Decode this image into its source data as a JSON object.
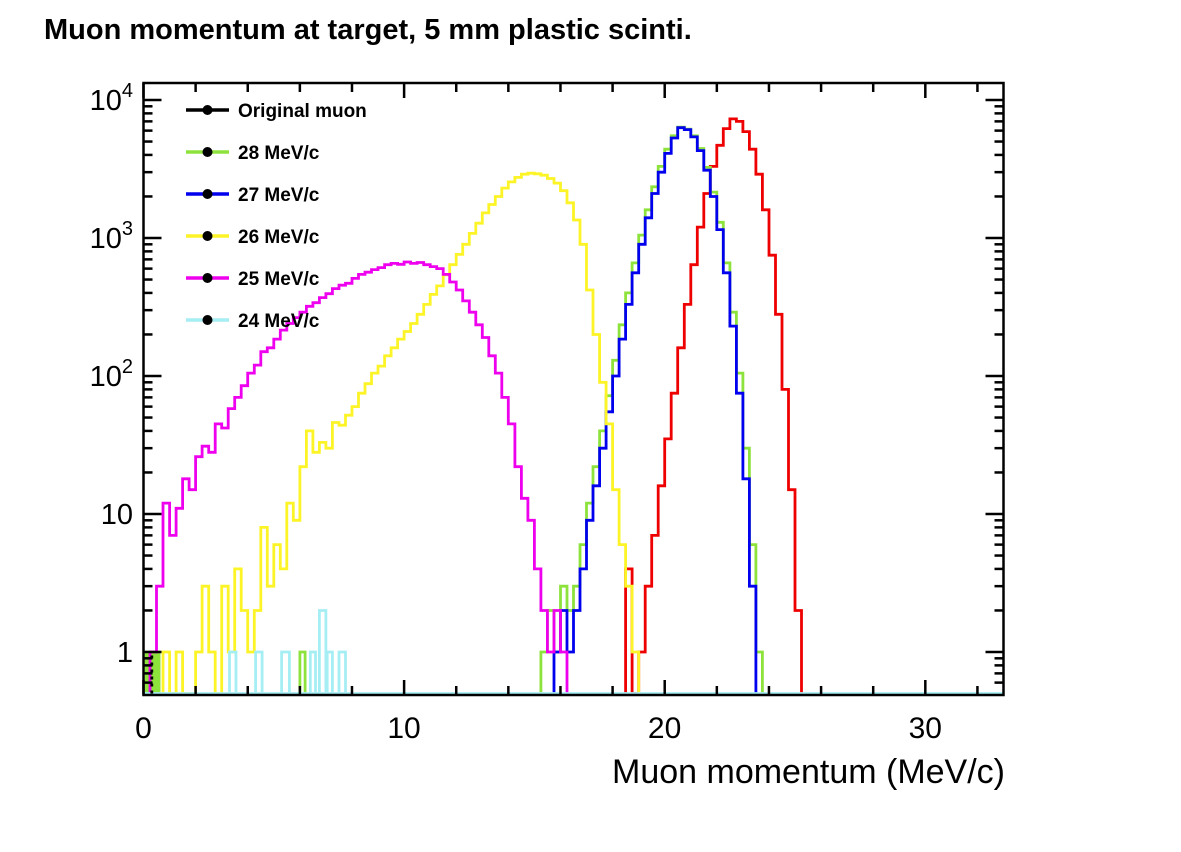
{
  "title": "Muon momentum at target, 5 mm plastic scinti.",
  "axes": {
    "x": {
      "title": "Muon momentum (MeV/c)",
      "range": [
        0,
        33
      ],
      "major_ticks": [
        {
          "v": 0,
          "label": "0"
        },
        {
          "v": 10,
          "label": "10"
        },
        {
          "v": 20,
          "label": "20"
        },
        {
          "v": 30,
          "label": "30"
        }
      ],
      "minor_tick_step": 2
    },
    "y": {
      "scale": "log",
      "range": [
        0.5,
        13000
      ],
      "decade_labels": [
        {
          "v": 1,
          "base": "1",
          "exp": ""
        },
        {
          "v": 10,
          "base": "10",
          "exp": ""
        },
        {
          "v": 100,
          "base": "10",
          "exp": "2"
        },
        {
          "v": 1000,
          "base": "10",
          "exp": "3"
        },
        {
          "v": 10000,
          "base": "10",
          "exp": "4"
        }
      ]
    }
  },
  "legend": {
    "items": [
      {
        "label": "Original muon",
        "color": "#000000"
      },
      {
        "label": "28 MeV/c",
        "color": "#8de33c"
      },
      {
        "label": "27 MeV/c",
        "color": "#0000ee"
      },
      {
        "label": "26 MeV/c",
        "color": "#fcf426"
      },
      {
        "label": "25 MeV/c",
        "color": "#ee00ee"
      },
      {
        "label": "24 MeV/c",
        "color": "#a5eef4"
      }
    ]
  },
  "chart_data": {
    "type": "histogram-step",
    "x_unit": "MeV/c",
    "xlabel": "Muon momentum (MeV/c)",
    "y_scale": "log",
    "ylim": [
      0.5,
      13000
    ],
    "xlim": [
      0,
      33
    ],
    "series": [
      {
        "id": "original-muon",
        "legend": "Original muon",
        "color": "#ee0000",
        "bin_start": 18.5,
        "bin_width": 0.25,
        "counts": [
          4,
          0,
          1,
          3,
          7,
          16,
          35,
          75,
          160,
          330,
          640,
          1200,
          2100,
          3300,
          4700,
          6200,
          7300,
          7000,
          5900,
          4400,
          2900,
          1600,
          750,
          280,
          80,
          15,
          2
        ],
        "peak_x": 22.6,
        "peak_value": 7300
      },
      {
        "id": "28mevc",
        "legend": "28 MeV/c",
        "color": "#8de33c",
        "bin_start": 15.25,
        "bin_width": 0.25,
        "counts": [
          1,
          2,
          1,
          3,
          2,
          3,
          6,
          12,
          22,
          40,
          72,
          130,
          235,
          400,
          660,
          1050,
          1600,
          2350,
          3300,
          4400,
          5500,
          6350,
          6150,
          5500,
          4450,
          3250,
          2150,
          1300,
          660,
          290,
          105,
          30,
          6,
          1
        ],
        "extra_bins": [
          [
            0.1,
            0.1,
            1
          ],
          [
            0.3,
            0.1,
            1
          ],
          [
            0.5,
            0.1,
            1
          ],
          [
            6.0,
            0.2,
            1
          ]
        ],
        "peak_x": 20.6,
        "peak_value": 6350
      },
      {
        "id": "27mevc",
        "legend": "27 MeV/c",
        "color": "#0000ee",
        "bin_start": 15.75,
        "bin_width": 0.25,
        "counts": [
          1,
          2,
          1,
          2,
          4,
          9,
          16,
          30,
          55,
          100,
          185,
          330,
          560,
          900,
          1400,
          2100,
          3000,
          4100,
          5300,
          6300,
          6100,
          5400,
          4300,
          3100,
          2000,
          1150,
          560,
          230,
          75,
          18,
          3
        ],
        "peak_x": 20.5,
        "peak_value": 6300
      },
      {
        "id": "26mevc",
        "legend": "26 MeV/c",
        "color": "#fcf426",
        "bin_start": 0.75,
        "bin_width": 0.25,
        "counts": [
          1,
          0,
          1,
          0,
          0,
          1,
          3,
          1,
          0,
          3,
          1,
          4,
          2,
          1,
          2,
          8,
          3,
          6,
          4,
          12,
          9,
          22,
          40,
          28,
          33,
          30,
          46,
          44,
          52,
          60,
          75,
          88,
          105,
          118,
          140,
          160,
          185,
          210,
          240,
          280,
          330,
          390,
          450,
          540,
          640,
          760,
          900,
          1080,
          1280,
          1520,
          1750,
          2000,
          2300,
          2550,
          2750,
          2900,
          2950,
          2920,
          2850,
          2700,
          2500,
          2200,
          1800,
          1350,
          900,
          420,
          200,
          90,
          45,
          15,
          6,
          3,
          1
        ],
        "peak_x": 14.7,
        "peak_value": 2950
      },
      {
        "id": "25mevc",
        "legend": "25 MeV/c",
        "color": "#ee00ee",
        "bin_start": 0.25,
        "bin_width": 0.25,
        "counts": [
          1,
          3,
          12,
          7,
          11,
          18,
          15,
          26,
          31,
          28,
          45,
          42,
          58,
          70,
          85,
          105,
          120,
          150,
          160,
          185,
          215,
          240,
          265,
          290,
          320,
          340,
          370,
          395,
          430,
          455,
          470,
          510,
          545,
          565,
          590,
          610,
          640,
          655,
          645,
          670,
          655,
          665,
          640,
          620,
          600,
          545,
          480,
          420,
          350,
          290,
          235,
          190,
          140,
          105,
          70,
          45,
          22,
          13,
          9,
          4,
          2,
          1,
          2,
          1
        ],
        "peak_x": 10.1,
        "peak_value": 670
      },
      {
        "id": "24mevc",
        "legend": "24 MeV/c",
        "color": "#a5eef4",
        "baseline": true,
        "extra_bins": [
          [
            3.3,
            0.25,
            1
          ],
          [
            4.3,
            0.25,
            1
          ],
          [
            5.3,
            0.3,
            1
          ],
          [
            6.4,
            0.2,
            1
          ],
          [
            6.75,
            0.25,
            2
          ],
          [
            7.05,
            0.2,
            1
          ],
          [
            7.5,
            0.25,
            1
          ]
        ],
        "peak_value": 2
      },
      {
        "id": "original-muon-low-stub",
        "legend": "Original muon",
        "color": "#000000",
        "dashed": true,
        "marker_line": {
          "x": 0.32,
          "top": 1
        }
      }
    ]
  }
}
